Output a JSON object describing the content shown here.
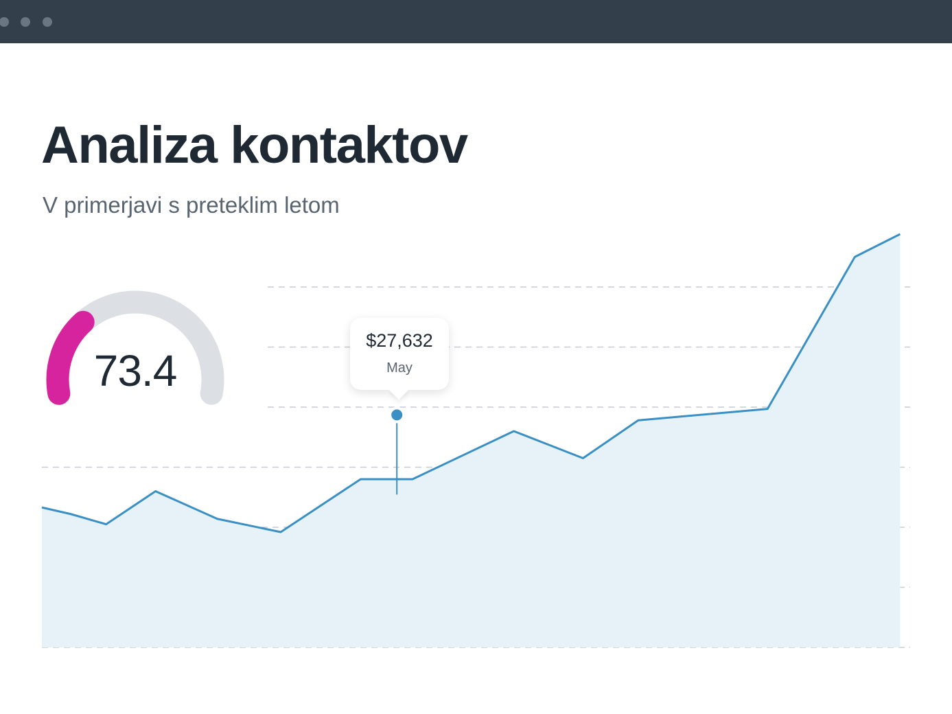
{
  "window": {
    "controls": [
      "close-dot",
      "minimize-dot",
      "maximize-dot"
    ]
  },
  "page": {
    "title": "Analiza kontaktov",
    "subtitle": "V primerjavi s preteklim letom"
  },
  "gauge": {
    "value": "73.4",
    "fill_fraction": 0.29,
    "colors": {
      "fill": "#d6249f",
      "track": "#dcdfe3"
    }
  },
  "tooltip": {
    "value": "$27,632",
    "label": "May"
  },
  "colors": {
    "accent": "#3a8fc4",
    "area": "#e7f2f8",
    "grid": "#c5cbd1",
    "titlebar": "#333f4b"
  },
  "chart_data": {
    "type": "area",
    "title": "",
    "xlabel": "",
    "ylabel": "",
    "grid": true,
    "ylim": [
      0,
      7
    ],
    "series": [
      {
        "points": [
          [
            0,
            2.33
          ],
          [
            0.35,
            2.22
          ],
          [
            0.78,
            2.05
          ],
          [
            1.38,
            2.6
          ],
          [
            2.13,
            2.14
          ],
          [
            2.9,
            1.92
          ],
          [
            3.87,
            2.8
          ],
          [
            4.5,
            2.8
          ],
          [
            5.73,
            3.6
          ],
          [
            6.57,
            3.15
          ],
          [
            7.24,
            3.78
          ],
          [
            8.81,
            3.97
          ],
          [
            9.87,
            6.5
          ],
          [
            10.42,
            6.88
          ]
        ]
      }
    ],
    "highlight": {
      "x": 4.31,
      "y": 3.87
    }
  }
}
